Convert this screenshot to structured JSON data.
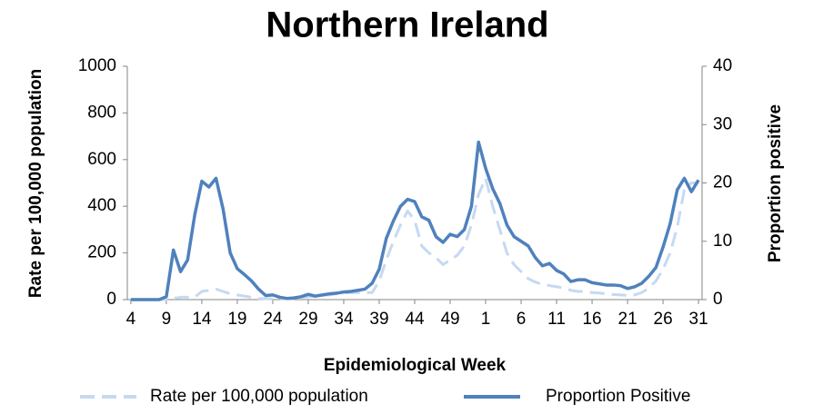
{
  "chart_data": {
    "type": "line",
    "title": "Northern Ireland",
    "x_label": "Epidemiological Week",
    "y_label": "Rate per 100,000 population",
    "y2_label": "Proportion positive",
    "categories": [
      "4",
      null,
      null,
      null,
      null,
      "9",
      null,
      null,
      null,
      null,
      "14",
      null,
      null,
      null,
      null,
      "19",
      null,
      null,
      null,
      null,
      "24",
      null,
      null,
      null,
      null,
      "29",
      null,
      null,
      null,
      null,
      "34",
      null,
      null,
      null,
      null,
      "39",
      null,
      null,
      null,
      null,
      "44",
      null,
      null,
      null,
      null,
      "49",
      null,
      null,
      null,
      null,
      "1",
      null,
      null,
      null,
      null,
      "6",
      null,
      null,
      null,
      null,
      "11",
      null,
      null,
      null,
      null,
      "16",
      null,
      null,
      null,
      null,
      "21",
      null,
      null,
      null,
      null,
      "26",
      null,
      null,
      null,
      null,
      "31"
    ],
    "series": [
      {
        "name": "Rate per 100,000 population",
        "color": "#c6d9f1",
        "dashed": true,
        "values": [
          0,
          0,
          0,
          0,
          0,
          0,
          5,
          10,
          10,
          10,
          35,
          40,
          45,
          35,
          25,
          20,
          15,
          10,
          5,
          4,
          3,
          3,
          4,
          5,
          10,
          12,
          15,
          18,
          20,
          25,
          28,
          30,
          30,
          30,
          30,
          80,
          170,
          250,
          320,
          380,
          340,
          230,
          200,
          180,
          150,
          170,
          190,
          230,
          320,
          450,
          520,
          400,
          300,
          200,
          150,
          120,
          90,
          75,
          65,
          60,
          55,
          50,
          40,
          35,
          35,
          30,
          28,
          25,
          22,
          20,
          18,
          20,
          30,
          50,
          80,
          130,
          200,
          310,
          470,
          500,
          500
        ]
      },
      {
        "name": "Proportion Positive",
        "color": "#4f81bd",
        "dashed": false,
        "axis": "y2",
        "values": [
          0,
          0,
          0,
          0,
          0,
          0.5,
          8.5,
          4.8,
          6.8,
          14.5,
          20.3,
          19.3,
          20.8,
          15.5,
          8,
          5.3,
          4.3,
          3.2,
          1.8,
          0.7,
          0.8,
          0.4,
          0.2,
          0.3,
          0.5,
          0.9,
          0.6,
          0.8,
          1.0,
          1.1,
          1.3,
          1.4,
          1.6,
          1.8,
          2.8,
          5.2,
          10.5,
          13.5,
          16,
          17.2,
          16.8,
          14.2,
          13.6,
          10.8,
          9.8,
          11.2,
          10.8,
          12,
          16,
          27,
          22.5,
          19,
          16.5,
          12.8,
          10.8,
          10,
          9.2,
          7.2,
          5.8,
          6.2,
          5,
          4.4,
          3.1,
          3.4,
          3.4,
          2.9,
          2.7,
          2.5,
          2.5,
          2.4,
          1.9,
          2.2,
          2.8,
          4,
          5.5,
          9,
          13,
          18.8,
          20.8,
          18.5,
          20.5
        ]
      }
    ],
    "ylim": [
      0,
      1000
    ],
    "yticks": [
      0,
      200,
      400,
      600,
      800,
      1000
    ],
    "y2lim": [
      0,
      40
    ],
    "y2ticks": [
      0,
      10,
      20,
      30,
      40
    ],
    "grid": false,
    "legend": "bottom"
  }
}
